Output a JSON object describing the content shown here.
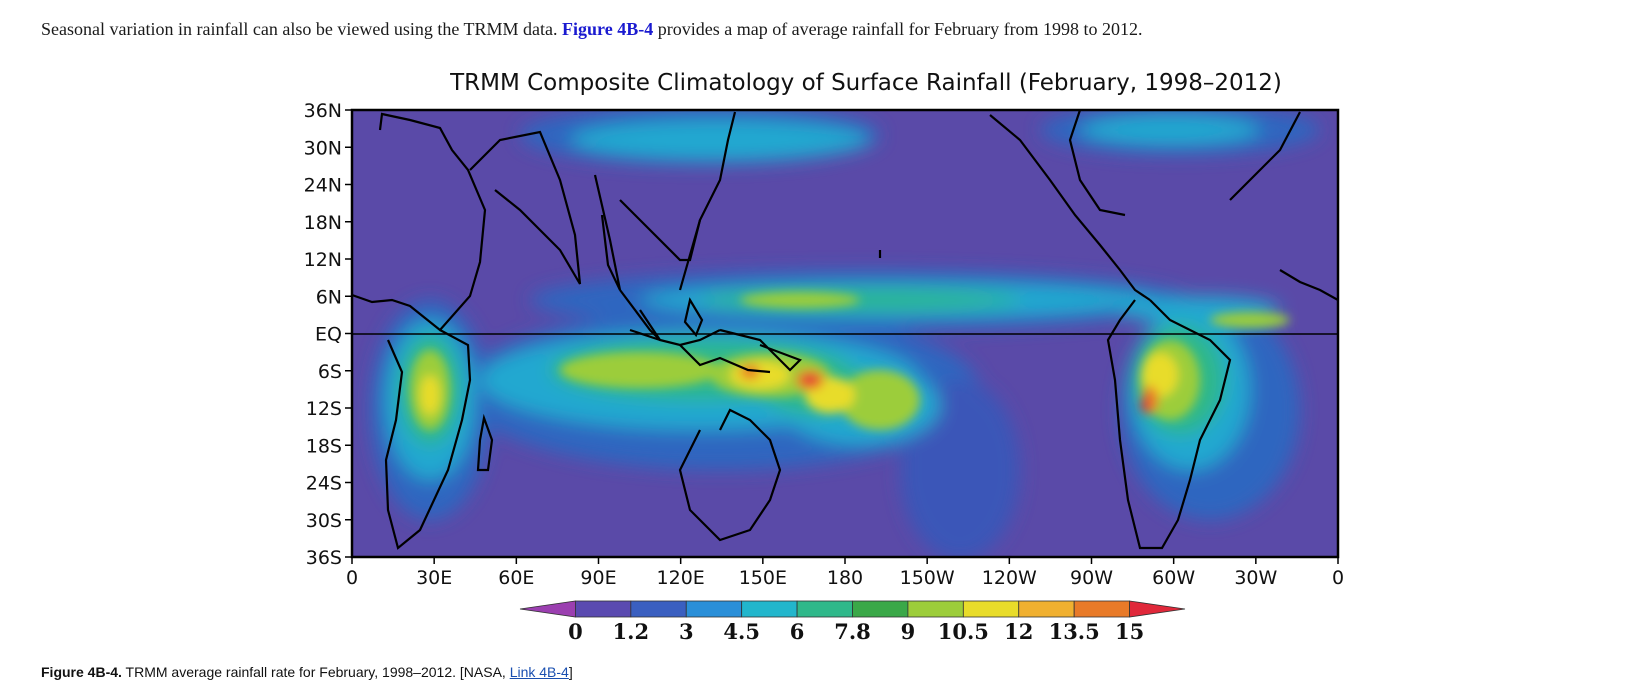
{
  "intro": {
    "before": "Seasonal variation in rainfall can also be viewed using the TRMM data. ",
    "link": "Figure 4B-4",
    "after": " provides a map of average rainfall for February from 1998 to 2012."
  },
  "figure": {
    "title": "TRMM Composite Climatology of Surface Rainfall (February, 1998–2012)",
    "lat_labels": [
      "36N",
      "30N",
      "24N",
      "18N",
      "12N",
      "6N",
      "EQ",
      "6S",
      "12S",
      "18S",
      "24S",
      "30S",
      "36S"
    ],
    "lon_labels": [
      "0",
      "30E",
      "60E",
      "90E",
      "120E",
      "150E",
      "180",
      "150W",
      "120W",
      "90W",
      "60W",
      "30W",
      "0"
    ],
    "colorbar": {
      "values": [
        "0",
        "1.2",
        "3",
        "4.5",
        "6",
        "7.8",
        "9",
        "10.5",
        "12",
        "13.5",
        "15"
      ],
      "colors": [
        "#9b3fb0",
        "#5a4ab0",
        "#3a5fc0",
        "#2a8fd8",
        "#22b6cc",
        "#2fb88a",
        "#3aa848",
        "#9ccd3a",
        "#e8dc2a",
        "#f0b030",
        "#e87a28",
        "#e0283a"
      ]
    },
    "map_colors": {
      "background": "#5a4aa8",
      "low": "#3a56b8",
      "medium": "#22a8d0",
      "medium_high": "#2fb88a",
      "high": "#9ccd3a",
      "very_high": "#e8dc2a",
      "peak": "#e87a28",
      "extreme": "#e0283a"
    }
  },
  "caption": {
    "label": "Figure 4B-4.",
    "text": " TRMM average rainfall rate for February, 1998–2012. [NASA, ",
    "link": "Link 4B-4",
    "end": "]"
  }
}
